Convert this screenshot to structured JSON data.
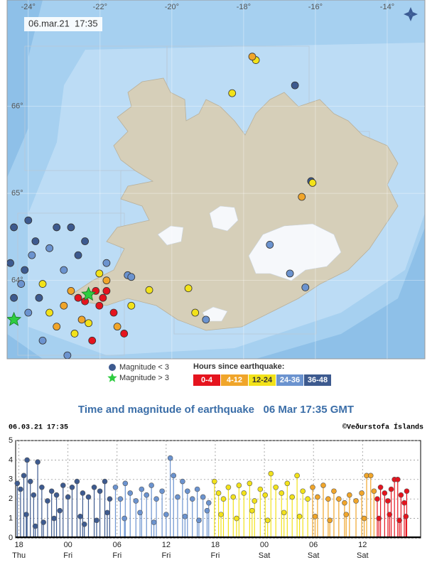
{
  "chart_data": [
    {
      "type": "map",
      "timestamp": "06.mar.21  17:35",
      "xlim": [
        -24.59,
        -12.95
      ],
      "ylim": [
        63.1,
        67.22
      ],
      "xticks": [
        {
          "value": -24,
          "label": "-24°"
        },
        {
          "value": -22,
          "label": "-22°"
        },
        {
          "value": -20,
          "label": "-20°"
        },
        {
          "value": -18,
          "label": "-18°"
        },
        {
          "value": -16,
          "label": "-16°"
        },
        {
          "value": -14,
          "label": "-14°"
        }
      ],
      "yticks": [
        {
          "value": 66,
          "label": "66°"
        },
        {
          "value": 65,
          "label": "65°"
        },
        {
          "value": 64,
          "label": "64°"
        }
      ],
      "marker_legend": [
        {
          "label": "Magnitude < 3",
          "marker": "circle",
          "color": "#3d5a8f"
        },
        {
          "label": "Magnitude > 3",
          "marker": "star",
          "color": "#2ecc40"
        }
      ],
      "color_legend_title": "Hours since earthquake:",
      "series": [
        {
          "name": "36-48",
          "color": "#3d5a8f",
          "x": [
            -16.57,
            -16.12,
            -24.4,
            -24.0,
            -23.8,
            -24.1,
            -24.5,
            -22.81,
            -22.42,
            -24.4,
            -23.21,
            -23.7,
            -22.61
          ],
          "values": [
            66.24,
            65.14,
            64.61,
            64.69,
            64.45,
            64.12,
            64.2,
            64.61,
            64.45,
            63.8,
            64.61,
            63.8,
            64.29
          ]
        },
        {
          "name": "24-36",
          "color": "#6b93cf",
          "x": [
            -21.23,
            -21.13,
            -17.27,
            -16.71,
            -16.28,
            -19.05,
            -23.9,
            -24.2,
            -23.41,
            -23.01,
            -23.6,
            -24.0,
            -22.91,
            -21.82
          ],
          "values": [
            64.06,
            64.04,
            64.41,
            64.08,
            63.92,
            63.55,
            64.29,
            63.96,
            64.37,
            64.12,
            63.31,
            63.63,
            63.14,
            64.2
          ]
        },
        {
          "name": "12-24",
          "color": "#f2e21a",
          "x": [
            -20.63,
            -19.54,
            -19.35,
            -18.32,
            -17.66,
            -16.08,
            -23.41,
            -22.71,
            -22.02,
            -21.13,
            -23.6,
            -22.32
          ],
          "values": [
            63.89,
            63.91,
            63.63,
            66.15,
            66.53,
            65.12,
            63.63,
            63.39,
            64.08,
            63.71,
            63.96,
            63.51
          ]
        },
        {
          "name": "4-12",
          "color": "#f0a52a",
          "x": [
            -22.81,
            -23.01,
            -21.82,
            -22.51,
            -21.52,
            -23.21,
            -17.76,
            -16.38
          ],
          "values": [
            63.88,
            63.71,
            64.0,
            63.55,
            63.47,
            63.47,
            66.57,
            64.96
          ]
        },
        {
          "name": "0-4",
          "color": "#e5141e",
          "x": [
            -22.32,
            -22.12,
            -21.92,
            -22.42,
            -21.82,
            -22.02,
            -22.61,
            -21.62,
            -22.22,
            -21.33
          ],
          "values": [
            63.84,
            63.88,
            63.8,
            63.76,
            63.88,
            63.71,
            63.8,
            63.63,
            63.31,
            63.39
          ]
        }
      ],
      "stars": {
        "color": "#2ecc40",
        "x": [
          -24.4,
          -22.32
        ],
        "values": [
          63.55,
          63.84
        ]
      }
    },
    {
      "type": "stem",
      "title": "Time and magnitude of earthquake   06 Mar 17:35 GMT",
      "timestamp": "06.03.21 17:35",
      "credit": "©Veðurstofa Íslands",
      "xlim": [
        17.6,
        67.1
      ],
      "ylim": [
        0,
        5
      ],
      "xticks": [
        {
          "value": 18,
          "label": "18",
          "day": "Thu"
        },
        {
          "value": 24,
          "label": "00",
          "day": "Fri"
        },
        {
          "value": 30,
          "label": "06",
          "day": "Fri"
        },
        {
          "value": 36,
          "label": "12",
          "day": "Fri"
        },
        {
          "value": 42,
          "label": "18",
          "day": "Fri"
        },
        {
          "value": 48,
          "label": "00",
          "day": "Sat"
        },
        {
          "value": 54,
          "label": "06",
          "day": "Sat"
        },
        {
          "value": 60,
          "label": "12",
          "day": "Sat"
        }
      ],
      "yticks": [
        0,
        1,
        2,
        3,
        4,
        5
      ],
      "grid": true,
      "series": [
        {
          "color": "#3d5a8f",
          "x": [
            17.8,
            18.2,
            18.6,
            19.0,
            19.4,
            19.8,
            20.3,
            20.8,
            21.5,
            22.0,
            22.6,
            23.4,
            24.0,
            24.5,
            25.1,
            25.8,
            26.5,
            27.2,
            27.9,
            28.5,
            29.1,
            18.9,
            21.0,
            23.0,
            25.5,
            27.5,
            28.8,
            20.0,
            22.3,
            26.0
          ],
          "values": [
            2.8,
            2.5,
            3.2,
            4.0,
            2.9,
            2.2,
            3.9,
            2.6,
            1.9,
            2.4,
            2.2,
            2.7,
            2.1,
            2.6,
            2.9,
            2.3,
            2.1,
            2.6,
            2.4,
            2.9,
            2.0,
            1.2,
            0.8,
            1.4,
            1.1,
            0.9,
            1.3,
            0.6,
            1.0,
            0.7
          ]
        },
        {
          "color": "#6b93cf",
          "x": [
            29.8,
            30.4,
            31.0,
            31.6,
            32.3,
            33.0,
            33.6,
            34.2,
            34.8,
            35.5,
            36.5,
            36.9,
            37.4,
            38.0,
            38.6,
            39.2,
            39.8,
            40.5,
            41.2,
            30.9,
            32.8,
            34.5,
            36.0,
            38.3,
            40.0,
            41.0
          ],
          "values": [
            2.6,
            2.0,
            2.8,
            2.3,
            1.9,
            2.5,
            2.2,
            2.7,
            2.0,
            2.4,
            4.1,
            3.2,
            2.1,
            2.9,
            2.4,
            2.0,
            2.5,
            2.1,
            1.8,
            1.0,
            1.3,
            0.8,
            1.2,
            1.1,
            0.9,
            1.4
          ]
        },
        {
          "color": "#f2e21a",
          "x": [
            41.9,
            42.4,
            43.0,
            43.6,
            44.2,
            44.9,
            45.5,
            46.2,
            46.8,
            47.5,
            48.1,
            48.8,
            49.4,
            50.1,
            50.8,
            51.4,
            52.0,
            52.7,
            53.3,
            42.7,
            44.6,
            46.5,
            48.4,
            50.4,
            52.3
          ],
          "values": [
            2.9,
            2.3,
            2.0,
            2.6,
            2.1,
            2.7,
            2.3,
            2.8,
            1.9,
            2.5,
            2.2,
            3.3,
            2.6,
            2.3,
            2.8,
            2.1,
            3.2,
            2.4,
            2.0,
            1.2,
            1.0,
            1.4,
            0.9,
            1.3,
            1.1
          ]
        },
        {
          "color": "#f0a52a",
          "x": [
            53.9,
            54.5,
            55.2,
            55.8,
            56.5,
            57.1,
            57.8,
            58.4,
            59.2,
            59.9,
            60.5,
            61.0,
            61.4,
            54.2,
            56.0,
            58.0,
            60.2
          ],
          "values": [
            2.6,
            2.1,
            2.7,
            2.0,
            2.4,
            2.0,
            1.8,
            2.2,
            1.9,
            2.3,
            3.2,
            3.2,
            2.4,
            1.1,
            0.9,
            1.2,
            1.0
          ]
        },
        {
          "color": "#e5141e",
          "x": [
            61.8,
            62.2,
            62.7,
            63.1,
            63.5,
            63.9,
            64.3,
            64.7,
            65.1,
            65.4,
            62.0,
            63.3,
            64.5,
            65.3
          ],
          "values": [
            2.0,
            2.6,
            2.3,
            1.9,
            2.5,
            3.0,
            3.0,
            2.2,
            1.8,
            2.4,
            1.0,
            1.2,
            0.9,
            1.1
          ]
        }
      ]
    }
  ]
}
